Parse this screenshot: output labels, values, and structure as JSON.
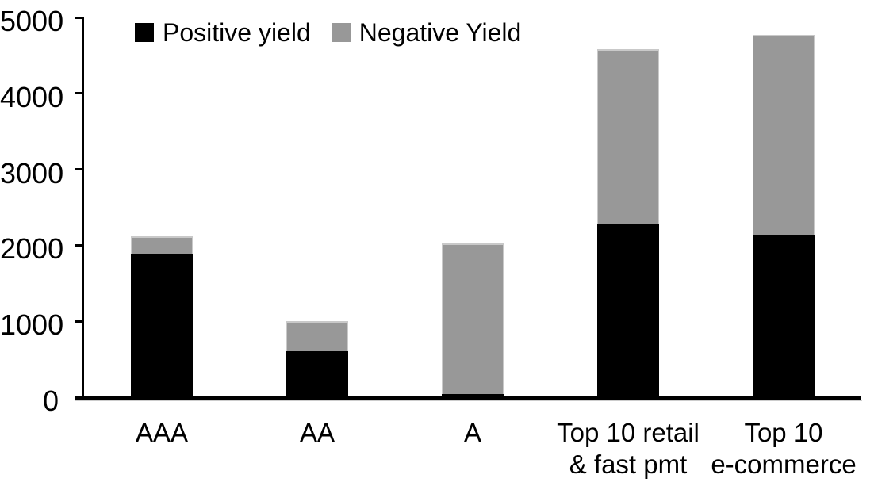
{
  "chart_data": {
    "type": "bar",
    "stacked": true,
    "title": "",
    "xlabel": "",
    "ylabel": "",
    "categories": [
      "AAA",
      "AA",
      "A",
      "Top 10 retail\n& fast pmt",
      "Top 10\ne-commerce"
    ],
    "series": [
      {
        "name": "Positive yield",
        "color": "#000000",
        "values": [
          1890,
          610,
          40,
          2280,
          2140
        ]
      },
      {
        "name": "Negative Yield",
        "color": "#989898",
        "values": [
          230,
          390,
          1990,
          2300,
          2630
        ]
      }
    ],
    "totals": [
      2120,
      1000,
      2030,
      4580,
      4770
    ],
    "ylim": [
      0,
      5000
    ],
    "yticks": [
      0,
      1000,
      2000,
      3000,
      4000,
      5000
    ],
    "legend_position": "top",
    "grid": false
  },
  "colors": {
    "background": "#ffffff",
    "axis": "#000000",
    "positive_series": "#000000",
    "negative_series": "#989898"
  }
}
